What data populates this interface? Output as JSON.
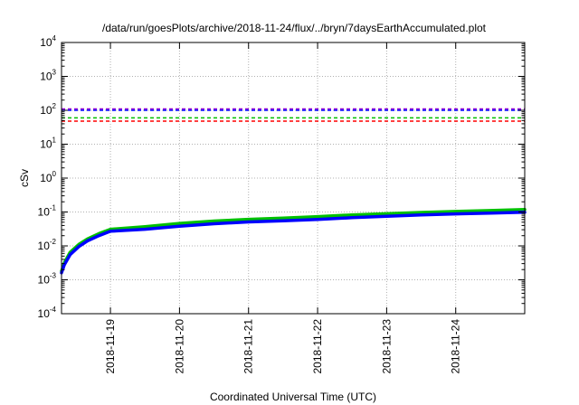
{
  "chart_data": {
    "type": "line",
    "title": "/data/run/goesPlots/archive/2018-11-24/flux/../bryn/7daysEarthAccumulated.plot",
    "xlabel": "Coordinated Universal Time (UTC)",
    "ylabel": "cSv",
    "y_scale": "log",
    "ylim": [
      0.0001,
      10000
    ],
    "xlim": [
      "2018-11-18T07:00",
      "2018-11-24T23:59"
    ],
    "grid": true,
    "legend": "none",
    "x_ticks": [
      "2018-11-19",
      "2018-11-20",
      "2018-11-21",
      "2018-11-22",
      "2018-11-23",
      "2018-11-24"
    ],
    "y_ticks": [
      {
        "base": "10",
        "exp": "4",
        "value": 10000
      },
      {
        "base": "10",
        "exp": "3",
        "value": 1000
      },
      {
        "base": "10",
        "exp": "2",
        "value": 100
      },
      {
        "base": "10",
        "exp": "1",
        "value": 10
      },
      {
        "base": "10",
        "exp": "0",
        "value": 1
      },
      {
        "base": "10",
        "exp": "-1",
        "value": 0.1
      },
      {
        "base": "10",
        "exp": "-2",
        "value": 0.01
      },
      {
        "base": "10",
        "exp": "-3",
        "value": 0.001
      },
      {
        "base": "10",
        "exp": "-4",
        "value": 0.0001
      }
    ],
    "thresholds": [
      {
        "value": 110,
        "color": "#9400d3"
      },
      {
        "value": 100,
        "color": "#0000ff"
      },
      {
        "value": 60,
        "color": "#00c000"
      },
      {
        "value": 48,
        "color": "#ff0000"
      }
    ],
    "series": [
      {
        "color": "#00c000",
        "x": [
          "2018-11-18T07:00",
          "2018-11-18T08:00",
          "2018-11-18T10:00",
          "2018-11-18T13:00",
          "2018-11-18T16:00",
          "2018-11-18T20:00",
          "2018-11-19T00:00",
          "2018-11-19T12:00",
          "2018-11-20T00:00",
          "2018-11-20T12:00",
          "2018-11-21T00:00",
          "2018-11-21T12:00",
          "2018-11-22T00:00",
          "2018-11-22T12:00",
          "2018-11-23T00:00",
          "2018-11-23T12:00",
          "2018-11-24T00:00",
          "2018-11-24T12:00",
          "2018-11-24T23:59"
        ],
        "y": [
          0.0018,
          0.0032,
          0.0065,
          0.011,
          0.016,
          0.023,
          0.031,
          0.037,
          0.046,
          0.054,
          0.061,
          0.066,
          0.073,
          0.082,
          0.089,
          0.097,
          0.104,
          0.11,
          0.118
        ]
      },
      {
        "color": "#0000ff",
        "x": [
          "2018-11-18T07:00",
          "2018-11-18T08:00",
          "2018-11-18T10:00",
          "2018-11-18T13:00",
          "2018-11-18T16:00",
          "2018-11-18T20:00",
          "2018-11-19T00:00",
          "2018-11-19T12:00",
          "2018-11-20T00:00",
          "2018-11-20T12:00",
          "2018-11-21T00:00",
          "2018-11-21T12:00",
          "2018-11-22T00:00",
          "2018-11-22T12:00",
          "2018-11-23T00:00",
          "2018-11-23T12:00",
          "2018-11-24T00:00",
          "2018-11-24T12:00",
          "2018-11-24T23:59"
        ],
        "y": [
          0.0016,
          0.0028,
          0.0055,
          0.0095,
          0.014,
          0.02,
          0.027,
          0.031,
          0.038,
          0.045,
          0.051,
          0.055,
          0.06,
          0.068,
          0.075,
          0.082,
          0.088,
          0.093,
          0.098
        ]
      }
    ]
  }
}
